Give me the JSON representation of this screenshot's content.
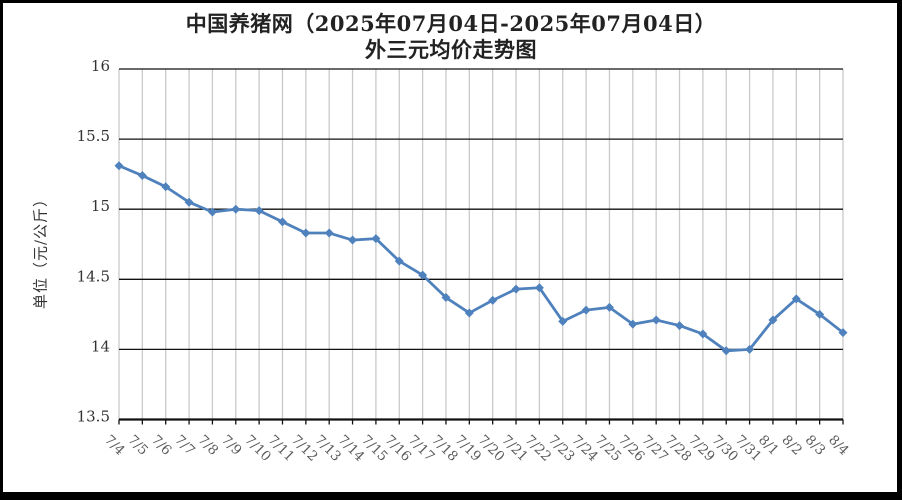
{
  "page": {
    "background": "#ffffff",
    "frame_color": "#000000"
  },
  "chart_data": {
    "type": "line",
    "title": "中国养猪网（2025年07月04日-2025年07月04日）",
    "subtitle": "外三元均价走势图",
    "ylabel": "单位（元/公斤）",
    "xlabel": "",
    "ylim": [
      13.5,
      16
    ],
    "ytick_step": 0.5,
    "ytick_labels": [
      "16",
      "15.5",
      "15",
      "14.5",
      "14",
      "13.5"
    ],
    "grid": {
      "horizontal": true,
      "vertical": true
    },
    "legend_position": "none",
    "marker": "diamond",
    "colors": {
      "line": "#4f81bd",
      "marker": "#4f81bd",
      "h_gridline": "#111111",
      "v_gridline": "#c9c9c9",
      "axis_line": "#111111",
      "ytick_text": "#333333",
      "xtick_text": "#5a5a5a"
    },
    "categories": [
      "7/4",
      "7/5",
      "7/6",
      "7/7",
      "7/8",
      "7/9",
      "7/10",
      "7/11",
      "7/12",
      "7/13",
      "7/14",
      "7/15",
      "7/16",
      "7/17",
      "7/18",
      "7/19",
      "7/20",
      "7/21",
      "7/22",
      "7/23",
      "7/24",
      "7/25",
      "7/26",
      "7/27",
      "7/28",
      "7/29",
      "7/30",
      "7/31",
      "8/1",
      "8/2",
      "8/3",
      "8/4"
    ],
    "values": [
      15.31,
      15.24,
      15.16,
      15.05,
      14.98,
      15.0,
      14.99,
      14.91,
      14.83,
      14.83,
      14.78,
      14.79,
      14.63,
      14.53,
      14.37,
      14.26,
      14.35,
      14.43,
      14.44,
      14.2,
      14.28,
      14.3,
      14.18,
      14.21,
      14.17,
      14.11,
      13.99,
      14.0,
      14.21,
      14.36,
      14.25,
      14.12
    ]
  }
}
